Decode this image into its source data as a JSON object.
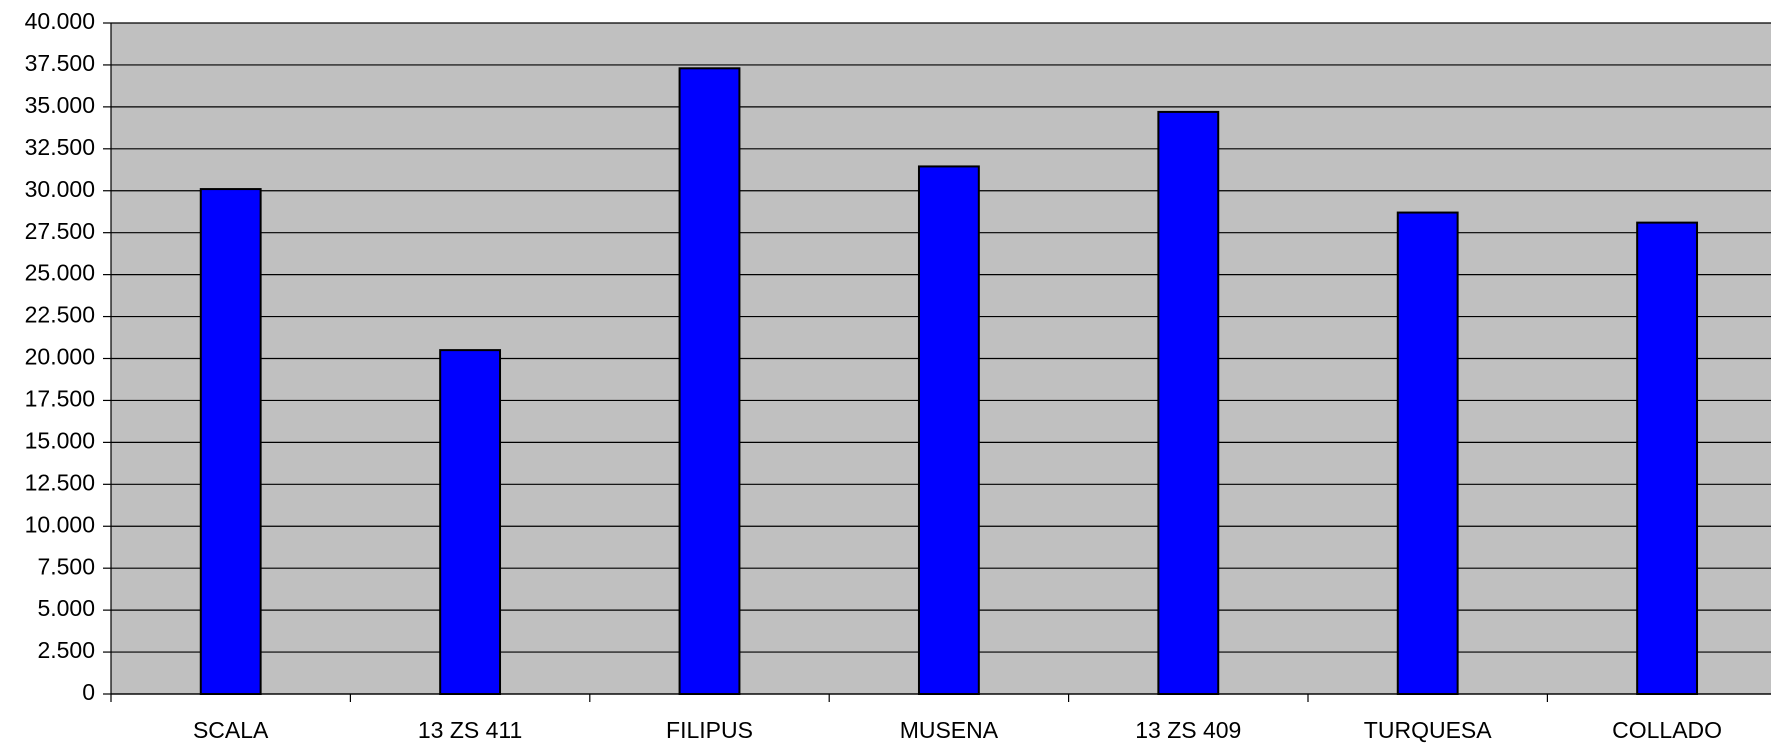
{
  "chart_data": {
    "type": "bar",
    "categories": [
      "SCALA",
      "13 ZS 411",
      "FILIPUS",
      "MUSENA",
      "13 ZS 409",
      "TURQUESA",
      "COLLADO"
    ],
    "values": [
      30100,
      20500,
      37300,
      31450,
      34700,
      28700,
      28100
    ],
    "color": "#0000ff",
    "ylim": [
      0,
      40000
    ],
    "yticks": [
      0,
      {
        "value": 2500,
        "label": "2.500"
      },
      {
        "value": 5000,
        "label": "5.000"
      },
      {
        "value": 7500,
        "label": "7.500"
      },
      {
        "value": 10000,
        "label": "10.000"
      },
      {
        "value": 12500,
        "label": "12.500"
      },
      {
        "value": 15000,
        "label": "15.000"
      },
      {
        "value": 17500,
        "label": "17.500"
      },
      {
        "value": 20000,
        "label": "20.000"
      },
      {
        "value": 22500,
        "label": "22.500"
      },
      {
        "value": 25000,
        "label": "25.000"
      },
      {
        "value": 27500,
        "label": "27.500"
      },
      {
        "value": 30000,
        "label": "30.000"
      },
      {
        "value": 32500,
        "label": "32.500"
      },
      {
        "value": 35000,
        "label": "35.000"
      },
      {
        "value": 37500,
        "label": "37.500"
      },
      {
        "value": 40000,
        "label": "40.000"
      }
    ],
    "grid": true
  }
}
